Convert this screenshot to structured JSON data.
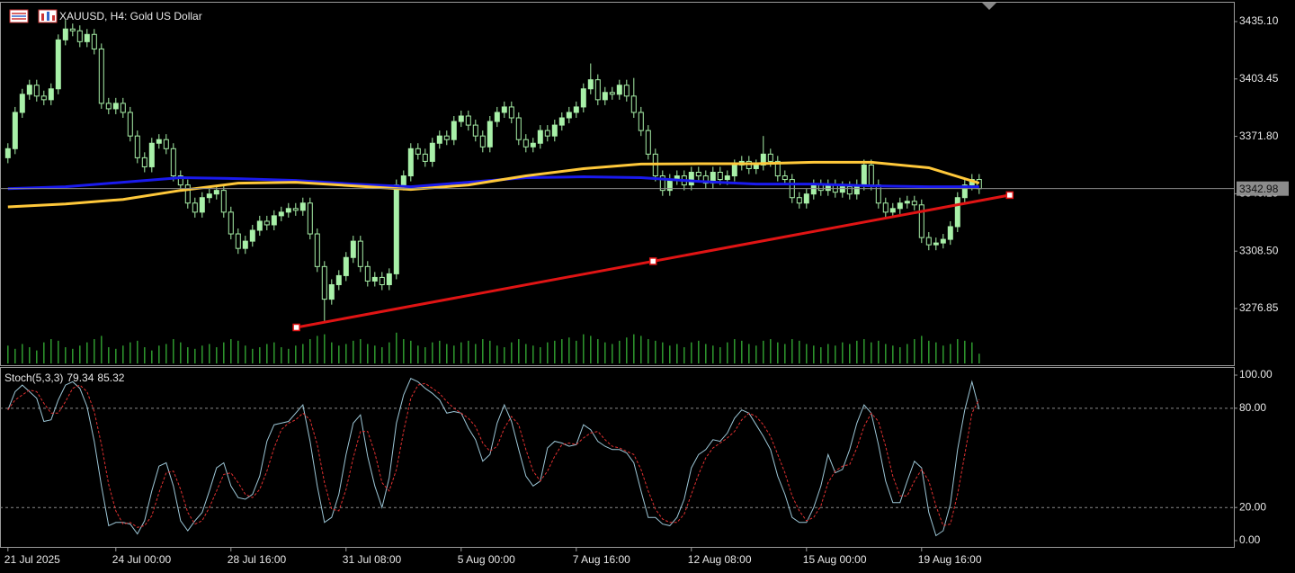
{
  "header": {
    "symbol_text": "XAUUSD, H4:  Gold US Dollar"
  },
  "chart_data": [
    {
      "type": "candlestick",
      "open": [
        3360,
        3365,
        3385,
        3395,
        3400,
        3394,
        3392,
        3398,
        3425,
        3431,
        3430,
        3424,
        3428,
        3420,
        3390,
        3387,
        3390,
        3385,
        3372,
        3360,
        3355,
        3368,
        3370,
        3365,
        3350,
        3345,
        3335,
        3330,
        3338,
        3340,
        3342,
        3330,
        3318,
        3310,
        3314,
        3320,
        3325,
        3323,
        3328,
        3330,
        3332,
        3331,
        3335,
        3318,
        3300,
        3282,
        3290,
        3295,
        3305,
        3314,
        3300,
        3292,
        3294,
        3290,
        3296,
        3345,
        3350,
        3365,
        3362,
        3358,
        3368,
        3372,
        3370,
        3380,
        3383,
        3378,
        3372,
        3366,
        3380,
        3385,
        3388,
        3382,
        3370,
        3366,
        3368,
        3375,
        3372,
        3378,
        3382,
        3385,
        3388,
        3398,
        3403,
        3392,
        3396,
        3395,
        3400,
        3394,
        3385,
        3375,
        3362,
        3350,
        3342,
        3348,
        3350,
        3345,
        3352,
        3350,
        3346,
        3352,
        3348,
        3350,
        3356,
        3358,
        3354,
        3356,
        3362,
        3358,
        3350,
        3348,
        3338,
        3335,
        3340,
        3345,
        3342,
        3345,
        3341,
        3344,
        3340,
        3345,
        3356,
        3345,
        3335,
        3330,
        3332,
        3335,
        3336,
        3334,
        3316,
        3312,
        3313,
        3315,
        3322,
        3338,
        3345,
        3348
      ],
      "high": [
        3368,
        3388,
        3398,
        3403,
        3403,
        3397,
        3401,
        3428,
        3436,
        3434,
        3433,
        3431,
        3431,
        3423,
        3393,
        3393,
        3393,
        3388,
        3375,
        3363,
        3371,
        3373,
        3373,
        3368,
        3353,
        3348,
        3338,
        3341,
        3343,
        3345,
        3345,
        3333,
        3321,
        3317,
        3323,
        3328,
        3328,
        3331,
        3333,
        3335,
        3335,
        3338,
        3338,
        3321,
        3303,
        3293,
        3298,
        3308,
        3317,
        3317,
        3303,
        3297,
        3297,
        3299,
        3348,
        3353,
        3368,
        3368,
        3365,
        3371,
        3375,
        3375,
        3383,
        3386,
        3386,
        3381,
        3375,
        3383,
        3388,
        3391,
        3391,
        3385,
        3373,
        3371,
        3378,
        3378,
        3381,
        3385,
        3388,
        3391,
        3401,
        3412,
        3406,
        3399,
        3399,
        3403,
        3403,
        3404,
        3388,
        3378,
        3365,
        3353,
        3351,
        3353,
        3353,
        3355,
        3355,
        3353,
        3355,
        3355,
        3353,
        3359,
        3361,
        3361,
        3359,
        3372,
        3365,
        3361,
        3353,
        3351,
        3341,
        3343,
        3348,
        3348,
        3348,
        3348,
        3347,
        3347,
        3348,
        3359,
        3359,
        3348,
        3338,
        3335,
        3338,
        3339,
        3339,
        3337,
        3319,
        3316,
        3318,
        3325,
        3341,
        3348,
        3351,
        3351
      ],
      "low": [
        3357,
        3362,
        3382,
        3392,
        3391,
        3389,
        3389,
        3395,
        3422,
        3427,
        3421,
        3421,
        3417,
        3387,
        3384,
        3384,
        3382,
        3369,
        3357,
        3352,
        3352,
        3365,
        3362,
        3347,
        3342,
        3332,
        3327,
        3327,
        3335,
        3337,
        3327,
        3315,
        3307,
        3307,
        3311,
        3317,
        3320,
        3320,
        3325,
        3327,
        3328,
        3328,
        3315,
        3297,
        3270,
        3279,
        3287,
        3292,
        3302,
        3297,
        3289,
        3289,
        3287,
        3287,
        3293,
        3342,
        3347,
        3359,
        3355,
        3355,
        3365,
        3367,
        3367,
        3377,
        3375,
        3369,
        3363,
        3363,
        3377,
        3382,
        3379,
        3367,
        3363,
        3363,
        3365,
        3369,
        3369,
        3375,
        3379,
        3382,
        3385,
        3395,
        3389,
        3389,
        3392,
        3392,
        3391,
        3382,
        3372,
        3359,
        3347,
        3339,
        3339,
        3345,
        3342,
        3342,
        3347,
        3343,
        3343,
        3345,
        3345,
        3347,
        3353,
        3351,
        3351,
        3353,
        3355,
        3347,
        3345,
        3335,
        3332,
        3332,
        3337,
        3339,
        3339,
        3338,
        3338,
        3337,
        3337,
        3342,
        3342,
        3332,
        3327,
        3327,
        3329,
        3332,
        3331,
        3313,
        3309,
        3309,
        3310,
        3312,
        3319,
        3335,
        3342,
        3340
      ],
      "close": [
        3365,
        3385,
        3395,
        3400,
        3394,
        3392,
        3398,
        3425,
        3431,
        3430,
        3424,
        3428,
        3420,
        3390,
        3387,
        3390,
        3385,
        3372,
        3360,
        3355,
        3368,
        3370,
        3365,
        3350,
        3345,
        3335,
        3330,
        3338,
        3340,
        3342,
        3330,
        3318,
        3310,
        3314,
        3320,
        3325,
        3323,
        3328,
        3330,
        3332,
        3331,
        3335,
        3318,
        3300,
        3282,
        3290,
        3295,
        3305,
        3314,
        3300,
        3292,
        3294,
        3290,
        3296,
        3345,
        3350,
        3365,
        3362,
        3358,
        3368,
        3372,
        3370,
        3380,
        3383,
        3378,
        3372,
        3366,
        3380,
        3385,
        3388,
        3382,
        3370,
        3366,
        3368,
        3375,
        3372,
        3378,
        3382,
        3385,
        3388,
        3398,
        3403,
        3392,
        3396,
        3395,
        3400,
        3394,
        3385,
        3375,
        3362,
        3350,
        3342,
        3348,
        3350,
        3345,
        3352,
        3350,
        3346,
        3352,
        3348,
        3350,
        3356,
        3358,
        3354,
        3356,
        3362,
        3358,
        3350,
        3348,
        3338,
        3335,
        3340,
        3345,
        3342,
        3345,
        3341,
        3344,
        3340,
        3345,
        3356,
        3345,
        3335,
        3330,
        3332,
        3335,
        3336,
        3334,
        3316,
        3312,
        3313,
        3315,
        3322,
        3338,
        3345,
        3348,
        3342.98
      ],
      "up_color": "#a8f0a8",
      "down_color": "#000000",
      "wick_color": "#a8f0a8",
      "ylim": [
        3245.6,
        3445.5
      ],
      "yticks": [
        {
          "value": 3435.1,
          "label": "3435.10"
        },
        3403.45,
        {
          "value": 3371.8,
          "label": "3371.80"
        },
        3340.15,
        {
          "value": 3308.5,
          "label": "3308.50"
        },
        3276.85
      ],
      "xlim": [
        -1.1,
        170.4
      ],
      "xticks": [
        {
          "value": 0,
          "label": "21 Jul 2025"
        },
        {
          "value": 15,
          "label": "24 Jul 00:00"
        },
        {
          "value": 31,
          "label": "28 Jul 16:00"
        },
        {
          "value": 47,
          "label": "31 Jul 08:00"
        },
        {
          "value": 63,
          "label": "5 Aug 00:00"
        },
        {
          "value": 79,
          "label": "7 Aug 16:00"
        },
        {
          "value": 95,
          "label": "12 Aug 08:00"
        },
        {
          "value": 111,
          "label": "15 Aug 00:00"
        },
        {
          "value": 127,
          "label": "19 Aug 16:00"
        }
      ],
      "last_price": 3342.98,
      "volume": {
        "color": "#2f9a2f",
        "ylim": [
          0,
          40
        ],
        "values": [
          22,
          18,
          24,
          20,
          16,
          26,
          30,
          28,
          20,
          18,
          22,
          26,
          30,
          34,
          20,
          18,
          22,
          26,
          28,
          20,
          16,
          22,
          24,
          30,
          26,
          20,
          18,
          22,
          24,
          20,
          26,
          30,
          28,
          22,
          18,
          20,
          24,
          26,
          20,
          18,
          22,
          24,
          30,
          34,
          36,
          26,
          22,
          24,
          28,
          30,
          24,
          22,
          20,
          26,
          38,
          30,
          28,
          22,
          20,
          26,
          28,
          24,
          22,
          26,
          28,
          24,
          30,
          28,
          22,
          20,
          26,
          30,
          24,
          22,
          20,
          26,
          28,
          30,
          32,
          28,
          36,
          34,
          30,
          26,
          24,
          28,
          32,
          36,
          34,
          30,
          28,
          26,
          22,
          24,
          20,
          26,
          28,
          24,
          22,
          20,
          26,
          30,
          28,
          24,
          22,
          28,
          30,
          26,
          24,
          30,
          28,
          24,
          22,
          20,
          24,
          22,
          26,
          24,
          28,
          30,
          26,
          28,
          24,
          22,
          20,
          24,
          30,
          34,
          28,
          26,
          22,
          24,
          30,
          28,
          26,
          12
        ]
      },
      "overlays": [
        {
          "color": "#1a1aee",
          "x": [
            0,
            8,
            16,
            24,
            32,
            40,
            48,
            56,
            64,
            72,
            80,
            88,
            96,
            104,
            112,
            120,
            128,
            135
          ],
          "values": [
            3342.9,
            3344,
            3346.5,
            3349,
            3348.5,
            3347.5,
            3345.5,
            3344,
            3346.5,
            3349,
            3349.5,
            3349,
            3347,
            3345.5,
            3345.5,
            3344.5,
            3344,
            3344
          ]
        },
        {
          "color": "#ffc83a",
          "x": [
            0,
            8,
            16,
            24,
            32,
            40,
            48,
            56,
            64,
            72,
            80,
            88,
            96,
            104,
            112,
            120,
            128,
            135
          ],
          "values": [
            3332.9,
            3334.5,
            3337,
            3342,
            3346,
            3346.5,
            3344.5,
            3342.5,
            3345,
            3350,
            3354,
            3356.5,
            3356.7,
            3356.7,
            3357.5,
            3357.5,
            3354.5,
            3346
          ]
        }
      ],
      "trendline": {
        "color": "#e01414",
        "x": [
          40.1,
          139.25
        ],
        "values": [
          3266.45,
          3339.4
        ]
      }
    },
    {
      "type": "line",
      "title": "Stoch(5,3,3)",
      "series": [
        {
          "color": "#9cc6d6",
          "values": [
            79,
            90,
            94,
            90,
            86,
            72,
            73,
            85,
            94,
            96,
            92,
            81,
            60,
            33,
            9,
            11,
            11,
            10,
            4,
            12,
            30,
            45,
            47,
            33,
            12,
            6,
            12,
            17,
            30,
            44,
            47,
            33,
            26,
            25,
            28,
            39,
            60,
            70,
            71,
            72,
            77,
            82,
            60,
            33,
            11,
            14,
            28,
            52,
            71,
            76,
            51,
            33,
            20,
            38,
            71,
            88,
            98,
            96,
            92,
            89,
            85,
            77,
            78,
            77,
            68,
            61,
            48,
            52,
            71,
            82,
            72,
            55,
            39,
            33,
            36,
            56,
            60,
            59,
            57,
            58,
            70,
            67,
            60,
            57,
            55,
            55,
            53,
            47,
            30,
            14,
            14,
            10,
            9,
            14,
            25,
            44,
            52,
            55,
            61,
            60,
            65,
            74,
            79,
            77,
            70,
            63,
            55,
            39,
            28,
            14,
            11,
            11,
            20,
            33,
            52,
            41,
            43,
            55,
            71,
            82,
            77,
            58,
            36,
            23,
            23,
            36,
            48,
            44,
            17,
            3,
            6,
            22,
            55,
            79,
            96,
            79.34
          ]
        },
        {
          "color": "#e03030",
          "dashed": true,
          "values": [
            79,
            85,
            88,
            91,
            90,
            83,
            77,
            77,
            84,
            92,
            94,
            90,
            78,
            58,
            34,
            18,
            10,
            11,
            8,
            9,
            15,
            29,
            41,
            42,
            31,
            17,
            10,
            12,
            20,
            30,
            40,
            41,
            35,
            28,
            26,
            31,
            42,
            56,
            67,
            71,
            73,
            77,
            73,
            58,
            35,
            19,
            18,
            31,
            50,
            66,
            66,
            53,
            35,
            30,
            43,
            66,
            86,
            94,
            95,
            92,
            89,
            84,
            80,
            77,
            74,
            69,
            59,
            54,
            57,
            68,
            75,
            70,
            55,
            42,
            36,
            42,
            51,
            58,
            59,
            58,
            62,
            65,
            66,
            61,
            57,
            56,
            54,
            52,
            43,
            30,
            19,
            13,
            11,
            11,
            16,
            28,
            40,
            50,
            56,
            59,
            62,
            66,
            73,
            77,
            75,
            70,
            63,
            52,
            41,
            27,
            18,
            12,
            14,
            21,
            35,
            42,
            45,
            46,
            56,
            69,
            77,
            72,
            57,
            39,
            27,
            27,
            36,
            43,
            36,
            21,
            9,
            10,
            28,
            52,
            77,
            85.32
          ]
        }
      ],
      "ylim": [
        -3.8,
        104.9
      ],
      "yticks": [
        {
          "value": 100,
          "label": "100.00"
        },
        {
          "value": 80,
          "label": "80.00"
        },
        {
          "value": 20,
          "label": "20.00"
        },
        {
          "value": 0,
          "label": "0.00"
        }
      ],
      "levels": [
        80,
        20
      ],
      "xlim": [
        -1.1,
        170.4
      ]
    }
  ]
}
